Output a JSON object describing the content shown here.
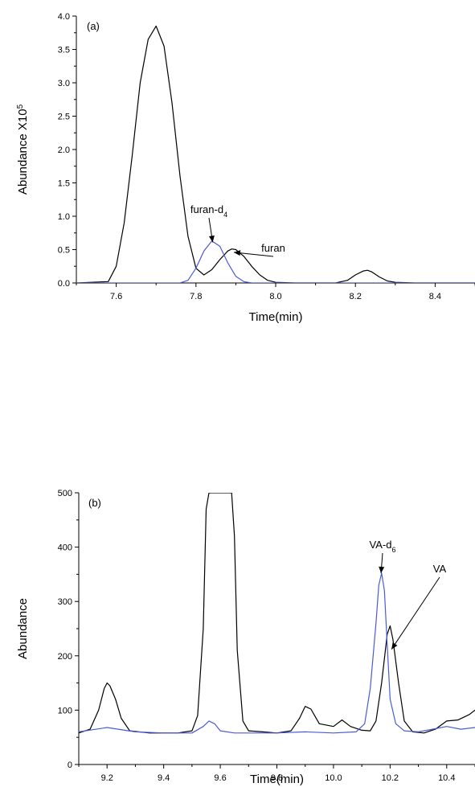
{
  "chart_data": [
    {
      "type": "line",
      "panel_label": "(a)",
      "xlabel": "Time(min)",
      "ylabel": "Abundance X10",
      "ylabel_sup": "5",
      "xlim": [
        7.5,
        8.5
      ],
      "ylim": [
        0,
        4.0
      ],
      "xticks": [
        7.6,
        7.8,
        8.0,
        8.2,
        8.4
      ],
      "xtick_labels": [
        "7.6",
        "7.8",
        "8.0",
        "8.2",
        "8.4"
      ],
      "yticks": [
        0,
        0.5,
        1.0,
        1.5,
        2.0,
        2.5,
        3.0,
        3.5,
        4.0
      ],
      "ytick_labels": [
        "0.0",
        "0.5",
        "1.0",
        "1.5",
        "2.0",
        "2.5",
        "3.0",
        "3.5",
        "4.0"
      ],
      "series": [
        {
          "color": "#000000",
          "x": [
            7.5,
            7.58,
            7.6,
            7.62,
            7.64,
            7.66,
            7.68,
            7.7,
            7.72,
            7.74,
            7.76,
            7.78,
            7.8,
            7.82,
            7.84,
            7.86,
            7.88,
            7.89,
            7.9,
            7.92,
            7.94,
            7.96,
            7.98,
            8.0,
            8.05,
            8.1,
            8.15,
            8.18,
            8.2,
            8.22,
            8.23,
            8.24,
            8.26,
            8.28,
            8.3,
            8.35,
            8.4,
            8.5
          ],
          "y": [
            0,
            0.02,
            0.25,
            0.9,
            1.9,
            3.0,
            3.65,
            3.85,
            3.55,
            2.7,
            1.6,
            0.7,
            0.22,
            0.12,
            0.2,
            0.35,
            0.48,
            0.51,
            0.5,
            0.4,
            0.25,
            0.12,
            0.04,
            0.01,
            0,
            0,
            0,
            0.04,
            0.12,
            0.18,
            0.19,
            0.17,
            0.09,
            0.03,
            0.01,
            0,
            0,
            0
          ]
        },
        {
          "color": "#4b5bd6",
          "x": [
            7.5,
            7.76,
            7.78,
            7.8,
            7.82,
            7.84,
            7.86,
            7.88,
            7.9,
            7.92,
            7.94,
            8.0,
            8.5
          ],
          "y": [
            0,
            0,
            0.04,
            0.22,
            0.48,
            0.63,
            0.55,
            0.3,
            0.1,
            0.02,
            0,
            0,
            0
          ]
        }
      ],
      "annotations": [
        {
          "text": "furan-d",
          "sub": "4",
          "arrow_to": [
            7.842,
            0.61
          ]
        },
        {
          "text": "furan",
          "arrow_to": [
            7.895,
            0.46
          ]
        }
      ]
    },
    {
      "type": "line",
      "panel_label": "(b)",
      "xlabel": "Time(min)",
      "ylabel": "Abundance",
      "xlim": [
        9.1,
        10.5
      ],
      "ylim": [
        0,
        500
      ],
      "xticks": [
        9.2,
        9.4,
        9.6,
        9.8,
        10.0,
        10.2,
        10.4
      ],
      "xtick_labels": [
        "9.2",
        "9.4",
        "9.6",
        "9.8",
        "10.0",
        "10.2",
        "10.4"
      ],
      "yticks": [
        0,
        100,
        200,
        300,
        400,
        500
      ],
      "ytick_labels": [
        "0",
        "100",
        "200",
        "300",
        "400",
        "500"
      ],
      "series": [
        {
          "color": "#000000",
          "x": [
            9.1,
            9.14,
            9.17,
            9.19,
            9.2,
            9.21,
            9.23,
            9.25,
            9.28,
            9.35,
            9.45,
            9.5,
            9.52,
            9.54,
            9.55,
            9.56,
            9.6,
            9.64,
            9.65,
            9.66,
            9.68,
            9.7,
            9.75,
            9.8,
            9.85,
            9.88,
            9.9,
            9.92,
            9.95,
            10.0,
            10.03,
            10.06,
            10.1,
            10.13,
            10.15,
            10.17,
            10.19,
            10.2,
            10.21,
            10.23,
            10.25,
            10.28,
            10.32,
            10.36,
            10.4,
            10.44,
            10.48,
            10.5
          ],
          "y": [
            58,
            65,
            100,
            140,
            150,
            145,
            120,
            85,
            62,
            58,
            58,
            62,
            90,
            250,
            470,
            500,
            500,
            500,
            420,
            210,
            80,
            62,
            60,
            58,
            62,
            85,
            107,
            102,
            75,
            70,
            82,
            70,
            63,
            62,
            80,
            150,
            240,
            255,
            230,
            150,
            80,
            60,
            58,
            65,
            80,
            82,
            92,
            100
          ]
        },
        {
          "color": "#4b5bd6",
          "x": [
            9.1,
            9.15,
            9.2,
            9.3,
            9.4,
            9.5,
            9.54,
            9.56,
            9.58,
            9.6,
            9.65,
            9.7,
            9.8,
            9.9,
            10.0,
            10.08,
            10.11,
            10.13,
            10.15,
            10.16,
            10.17,
            10.18,
            10.19,
            10.2,
            10.22,
            10.25,
            10.3,
            10.35,
            10.4,
            10.45,
            10.5
          ],
          "y": [
            60,
            64,
            68,
            60,
            58,
            58,
            70,
            80,
            75,
            62,
            58,
            58,
            58,
            60,
            58,
            60,
            75,
            140,
            260,
            330,
            352,
            320,
            220,
            120,
            75,
            62,
            60,
            65,
            70,
            65,
            68
          ]
        }
      ],
      "annotations": [
        {
          "text": "VA-d",
          "sub": "6",
          "arrow_to": [
            10.168,
            352
          ]
        },
        {
          "text": "VA",
          "arrow_to": [
            10.205,
            212
          ]
        }
      ]
    }
  ]
}
